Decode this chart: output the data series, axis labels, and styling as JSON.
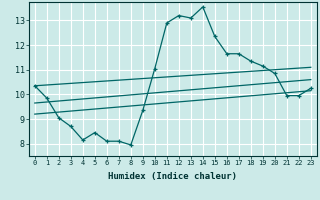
{
  "xlabel": "Humidex (Indice chaleur)",
  "bg_color": "#cceae8",
  "line_color": "#006666",
  "grid_color": "#ffffff",
  "xlim": [
    -0.5,
    23.5
  ],
  "ylim": [
    7.5,
    13.75
  ],
  "xticks": [
    0,
    1,
    2,
    3,
    4,
    5,
    6,
    7,
    8,
    9,
    10,
    11,
    12,
    13,
    14,
    15,
    16,
    17,
    18,
    19,
    20,
    21,
    22,
    23
  ],
  "yticks": [
    8,
    9,
    10,
    11,
    12,
    13
  ],
  "main_x": [
    0,
    1,
    2,
    3,
    4,
    5,
    6,
    7,
    8,
    9,
    10,
    11,
    12,
    13,
    14,
    15,
    16,
    17,
    18,
    19,
    20,
    21,
    22,
    23
  ],
  "main_y": [
    10.35,
    9.85,
    9.05,
    8.7,
    8.15,
    8.45,
    8.1,
    8.1,
    7.95,
    9.35,
    11.05,
    12.9,
    13.2,
    13.1,
    13.55,
    12.35,
    11.65,
    11.65,
    11.35,
    11.15,
    10.85,
    9.95,
    9.95,
    10.25
  ],
  "line2_x": [
    0,
    23
  ],
  "line2_y": [
    10.35,
    11.1
  ],
  "line3_x": [
    0,
    23
  ],
  "line3_y": [
    9.65,
    10.6
  ],
  "line4_x": [
    0,
    23
  ],
  "line4_y": [
    9.2,
    10.15
  ]
}
